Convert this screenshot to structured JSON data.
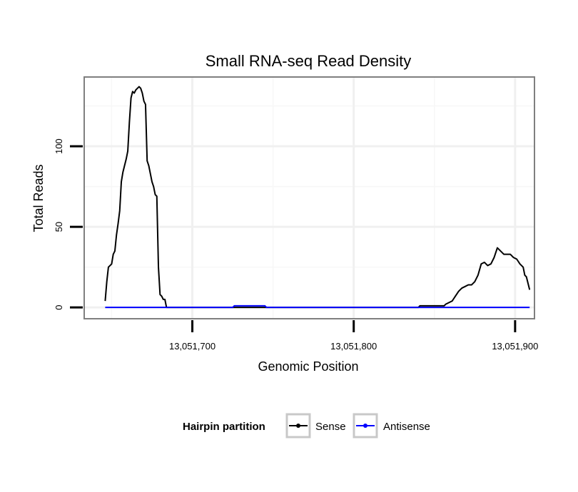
{
  "chart_data": {
    "type": "line",
    "title": "Small RNA-seq Read Density",
    "xlabel": "Genomic Position",
    "ylabel": "Total Reads",
    "xlim": [
      13051633,
      13051912
    ],
    "ylim": [
      -7,
      143
    ],
    "x_ticks": [
      13051700,
      13051800,
      13051900
    ],
    "x_tick_labels": [
      "13,051,700",
      "13,051,800",
      "13,051,900"
    ],
    "y_ticks": [
      0,
      50,
      100
    ],
    "y_tick_labels": [
      "0",
      "50",
      "100"
    ],
    "grid": true,
    "legend": {
      "title": "Hairpin partition",
      "position": "bottom",
      "entries": [
        "Sense",
        "Antisense"
      ]
    },
    "series": [
      {
        "name": "Sense",
        "color": "#000000",
        "points": [
          [
            13051646,
            4
          ],
          [
            13051647,
            16
          ],
          [
            13051648,
            25
          ],
          [
            13051649,
            26
          ],
          [
            13051650,
            27
          ],
          [
            13051651,
            33
          ],
          [
            13051652,
            35
          ],
          [
            13051653,
            45
          ],
          [
            13051654,
            52
          ],
          [
            13051655,
            60
          ],
          [
            13051656,
            78
          ],
          [
            13051657,
            84
          ],
          [
            13051658,
            88
          ],
          [
            13051659,
            92
          ],
          [
            13051660,
            97
          ],
          [
            13051661,
            115
          ],
          [
            13051662,
            130
          ],
          [
            13051663,
            134
          ],
          [
            13051664,
            133
          ],
          [
            13051665,
            135
          ],
          [
            13051666,
            136
          ],
          [
            13051667,
            137
          ],
          [
            13051668,
            136
          ],
          [
            13051669,
            133
          ],
          [
            13051670,
            128
          ],
          [
            13051671,
            126
          ],
          [
            13051672,
            91
          ],
          [
            13051673,
            88
          ],
          [
            13051674,
            83
          ],
          [
            13051675,
            78
          ],
          [
            13051676,
            75
          ],
          [
            13051677,
            70
          ],
          [
            13051678,
            69
          ],
          [
            13051679,
            25
          ],
          [
            13051680,
            8
          ],
          [
            13051681,
            7
          ],
          [
            13051682,
            5
          ],
          [
            13051683,
            5
          ],
          [
            13051684,
            0
          ],
          [
            13051840,
            0
          ],
          [
            13051841,
            1
          ],
          [
            13051856,
            1
          ],
          [
            13051857,
            2
          ],
          [
            13051859,
            3
          ],
          [
            13051861,
            4
          ],
          [
            13051863,
            7
          ],
          [
            13051865,
            10
          ],
          [
            13051867,
            12
          ],
          [
            13051869,
            13
          ],
          [
            13051871,
            14
          ],
          [
            13051873,
            14
          ],
          [
            13051875,
            16
          ],
          [
            13051877,
            20
          ],
          [
            13051879,
            27
          ],
          [
            13051881,
            28
          ],
          [
            13051883,
            26
          ],
          [
            13051885,
            27
          ],
          [
            13051887,
            31
          ],
          [
            13051889,
            37
          ],
          [
            13051891,
            35
          ],
          [
            13051893,
            33
          ],
          [
            13051895,
            33
          ],
          [
            13051897,
            33
          ],
          [
            13051899,
            31
          ],
          [
            13051901,
            30
          ],
          [
            13051903,
            27
          ],
          [
            13051905,
            25
          ],
          [
            13051906,
            20
          ],
          [
            13051907,
            19
          ],
          [
            13051909,
            11
          ]
        ]
      },
      {
        "name": "Antisense",
        "color": "#0000ff",
        "points": [
          [
            13051646,
            0
          ],
          [
            13051725,
            0
          ],
          [
            13051726,
            1
          ],
          [
            13051745,
            1
          ],
          [
            13051746,
            0
          ],
          [
            13051909,
            0
          ]
        ]
      }
    ]
  }
}
